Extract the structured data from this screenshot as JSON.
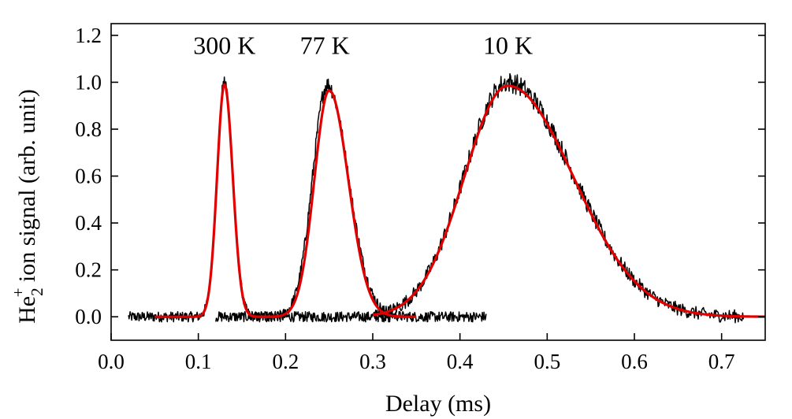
{
  "chart_data": {
    "type": "line",
    "title": "",
    "xlabel": "Delay (ms)",
    "ylabel": {
      "base": "He",
      "subscript": "2",
      "superscript": "+",
      "rest": " ion signal (arb. unit)"
    },
    "xlim": [
      0.0,
      0.75
    ],
    "ylim": [
      -0.1,
      1.25
    ],
    "xticks": [
      0.0,
      0.1,
      0.2,
      0.3,
      0.4,
      0.5,
      0.6,
      0.7
    ],
    "xtick_labels": [
      "0.0",
      "0.1",
      "0.2",
      "0.3",
      "0.4",
      "0.5",
      "0.6",
      "0.7"
    ],
    "yticks": [
      0.0,
      0.2,
      0.4,
      0.6,
      0.8,
      1.0,
      1.2
    ],
    "ytick_labels": [
      "0.0",
      "0.2",
      "0.4",
      "0.6",
      "0.8",
      "1.0",
      "1.2"
    ],
    "grid": false,
    "annotations": [
      {
        "text": "300 K",
        "x": 0.13,
        "y": 1.12
      },
      {
        "text": "77 K",
        "x": 0.245,
        "y": 1.12
      },
      {
        "text": "10 K",
        "x": 0.455,
        "y": 1.12
      }
    ],
    "series": [
      {
        "name": "300 K data",
        "color": "#000000",
        "kind": "data",
        "x_range": [
          0.02,
          0.32
        ],
        "peak_center": 0.13,
        "peak_height": 1.0,
        "sigma_left": 0.0085,
        "sigma_right": 0.0095,
        "noise_amplitude": 0.022
      },
      {
        "name": "300 K fit",
        "color": "#e00000",
        "kind": "fit",
        "x_range": [
          0.05,
          0.19
        ],
        "peak_center": 0.13,
        "peak_height": 0.99,
        "sigma_left": 0.0085,
        "sigma_right": 0.0095
      },
      {
        "name": "77 K data",
        "color": "#000000",
        "kind": "data",
        "x_range": [
          0.12,
          0.43
        ],
        "peak_center": 0.248,
        "peak_height": 0.99,
        "sigma_left": 0.017,
        "sigma_right": 0.024,
        "noise_amplitude": 0.022
      },
      {
        "name": "77 K fit",
        "color": "#e00000",
        "kind": "fit",
        "x_range": [
          0.17,
          0.35
        ],
        "peak_center": 0.25,
        "peak_height": 0.965,
        "sigma_left": 0.017,
        "sigma_right": 0.022
      },
      {
        "name": "10 K data",
        "color": "#000000",
        "kind": "data",
        "x_range": [
          0.3,
          0.725
        ],
        "peak_center": 0.455,
        "peak_height": 1.0,
        "sigma_left": 0.05,
        "sigma_right": 0.075,
        "noise_amplitude": 0.028
      },
      {
        "name": "10 K fit",
        "color": "#e00000",
        "kind": "fit",
        "x_range": [
          0.3,
          0.75
        ],
        "peak_center": 0.455,
        "peak_height": 0.985,
        "sigma_left": 0.05,
        "sigma_right": 0.075
      }
    ]
  }
}
